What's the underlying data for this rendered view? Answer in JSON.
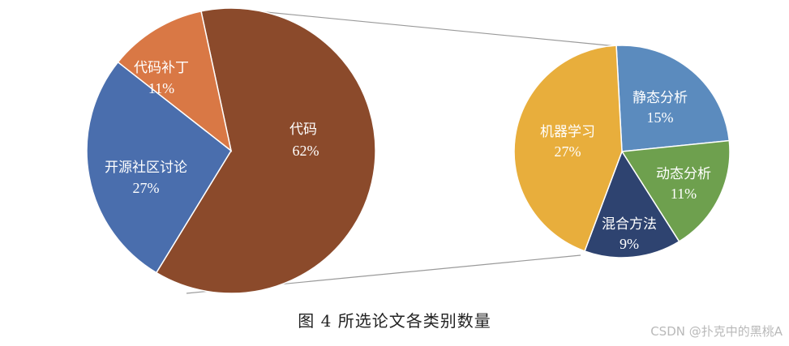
{
  "chart_data": {
    "type": "pie",
    "main_pie": {
      "slices": [
        {
          "label": "代码",
          "pct_label": "62%",
          "value": 62,
          "color": "#8B4A2B"
        },
        {
          "label": "开源社区讨论",
          "pct_label": "27%",
          "value": 27,
          "color": "#4A6EAD"
        },
        {
          "label": "代码补丁",
          "pct_label": "11%",
          "value": 11,
          "color": "#D97845"
        }
      ]
    },
    "detail_pie": {
      "slices": [
        {
          "label": "静态分析",
          "pct_label": "15%",
          "value": 15,
          "color": "#5B8BBE"
        },
        {
          "label": "动态分析",
          "pct_label": "11%",
          "value": 11,
          "color": "#6EA04E"
        },
        {
          "label": "混合方法",
          "pct_label": "9%",
          "value": 9,
          "color": "#2E4370"
        },
        {
          "label": "机器学习",
          "pct_label": "27%",
          "value": 27,
          "color": "#E8AE3C"
        }
      ]
    }
  },
  "caption": "图 4    所选论文各类别数量",
  "watermark": "CSDN @扑克中的黑桃A"
}
